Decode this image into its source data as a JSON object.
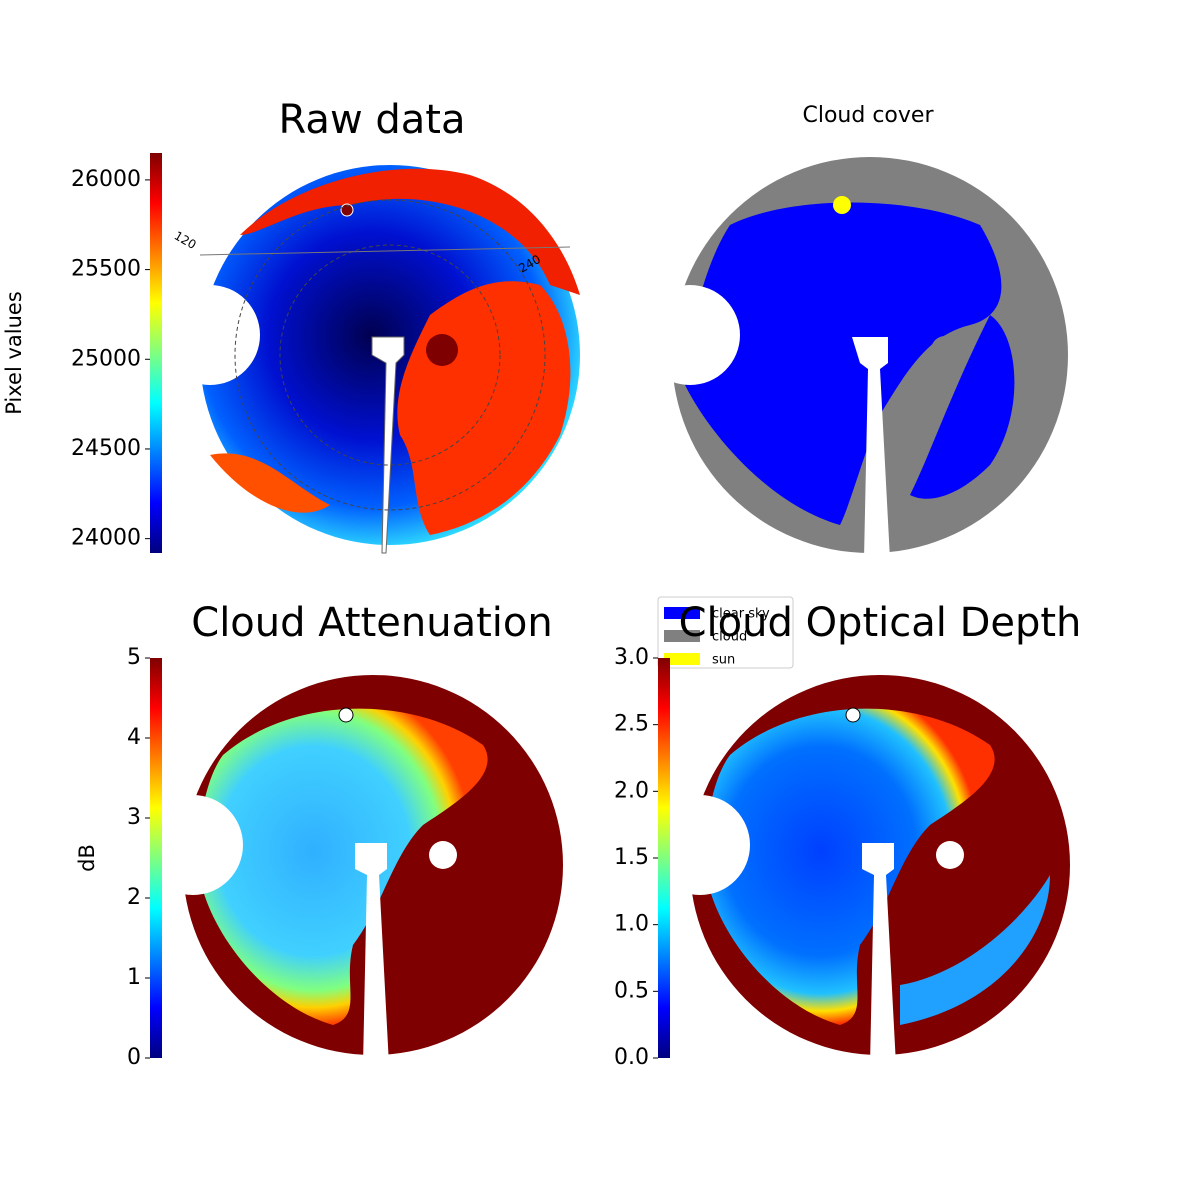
{
  "chart_data": [
    {
      "type": "image",
      "title": "Raw data",
      "ylabel": "Pixel values",
      "colormap": "jet",
      "ylim": [
        23920,
        26150
      ],
      "yticks": [
        24000,
        24500,
        25000,
        25500,
        26000
      ],
      "annotations": [
        "120",
        "240"
      ]
    },
    {
      "type": "image",
      "title": "Cloud cover",
      "series": [
        {
          "name": "clear sky",
          "color": "#0000ff"
        },
        {
          "name": "cloud",
          "color": "#808080"
        },
        {
          "name": "sun",
          "color": "#ffff00"
        }
      ],
      "legend": "upper left"
    },
    {
      "type": "image",
      "title": "Cloud Attenuation",
      "ylabel": "dB",
      "colormap": "jet",
      "ylim": [
        0,
        5
      ],
      "yticks": [
        0,
        1,
        2,
        3,
        4,
        5
      ]
    },
    {
      "type": "image",
      "title": "Cloud Optical Depth",
      "colormap": "jet",
      "ylim": [
        0,
        3
      ],
      "yticks": [
        {
          "value": 0,
          "label": "0.0"
        },
        {
          "value": 0.5,
          "label": "0.5"
        },
        {
          "value": 1,
          "label": "1.0"
        },
        {
          "value": 1.5,
          "label": "1.5"
        },
        {
          "value": 2,
          "label": "2.0"
        },
        {
          "value": 2.5,
          "label": "2.5"
        },
        {
          "value": 3,
          "label": "3.0"
        }
      ]
    }
  ]
}
